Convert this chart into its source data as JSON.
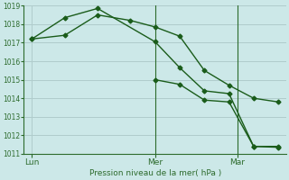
{
  "title": "Pression niveau de la mer( hPa )",
  "bg_color": "#cce8e8",
  "grid_color": "#b0cccc",
  "line_color": "#1a5c1a",
  "spine_color": "#2d6b2d",
  "ylim": [
    1011,
    1019
  ],
  "yticks": [
    1011,
    1012,
    1013,
    1014,
    1015,
    1016,
    1017,
    1018,
    1019
  ],
  "xlim_min": 0,
  "xlim_max": 16,
  "xtick_labels": [
    "Lun",
    "Mer",
    "Mar"
  ],
  "xtick_positions": [
    0.5,
    8.0,
    13.0
  ],
  "vline_positions": [
    8.0,
    13.0
  ],
  "line1_x": [
    0.5,
    2.5,
    4.5,
    6.5,
    8.0,
    9.5,
    11.0,
    12.5,
    14.0,
    15.5
  ],
  "line1_y": [
    1017.2,
    1017.4,
    1018.5,
    1018.2,
    1017.85,
    1017.35,
    1015.5,
    1014.7,
    1014.0,
    1013.8
  ],
  "line2_x": [
    0.5,
    2.5,
    4.5,
    8.0,
    9.5,
    11.0,
    12.5,
    14.0,
    15.5
  ],
  "line2_y": [
    1017.2,
    1018.35,
    1018.85,
    1017.05,
    1015.65,
    1014.4,
    1014.25,
    1011.4,
    1011.4
  ],
  "line3_x": [
    8.0,
    9.5,
    11.0,
    12.5,
    14.0,
    15.5
  ],
  "line3_y": [
    1015.0,
    1014.75,
    1013.9,
    1013.8,
    1011.4,
    1011.35
  ],
  "marker": "D",
  "marker_size": 2.5,
  "linewidth": 1.0,
  "ylabel_fontsize": 6.5,
  "ytick_fontsize": 5.5,
  "xtick_fontsize": 6.5
}
